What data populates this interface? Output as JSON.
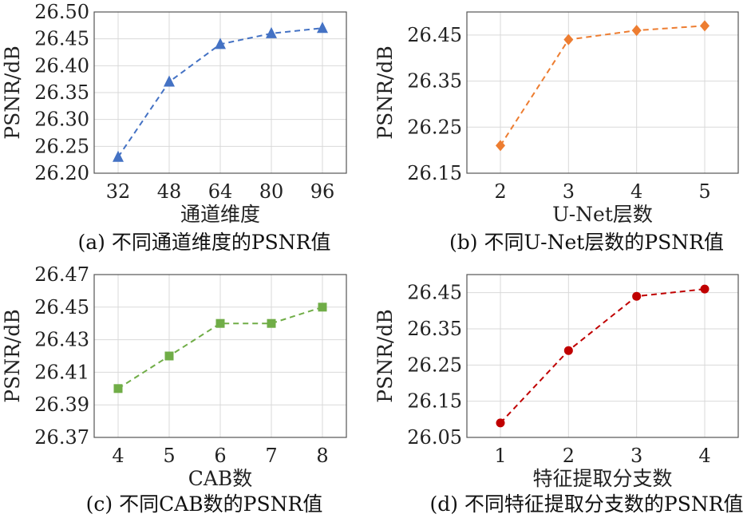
{
  "chart_data": [
    {
      "type": "line",
      "marker": "triangle",
      "color": "#4472c4",
      "x": [
        32,
        48,
        64,
        80,
        96
      ],
      "values": [
        26.23,
        26.37,
        26.44,
        26.46,
        26.47
      ],
      "xticks": [
        "32",
        "48",
        "64",
        "80",
        "96"
      ],
      "yticks": [
        "26.20",
        "26.25",
        "26.30",
        "26.35",
        "26.40",
        "26.45",
        "26.50"
      ],
      "ylim": [
        26.2,
        26.5
      ],
      "xlabel": "通道维度",
      "ylabel": "PSNR/dB",
      "caption": "(a) 不同通道维度的PSNR值",
      "grid": true
    },
    {
      "type": "line",
      "marker": "diamond",
      "color": "#ed7d31",
      "x": [
        2,
        3,
        4,
        5
      ],
      "values": [
        26.21,
        26.44,
        26.46,
        26.47
      ],
      "xticks": [
        "2",
        "3",
        "4",
        "5"
      ],
      "yticks": [
        "26.15",
        "26.25",
        "26.35",
        "26.45"
      ],
      "ylim": [
        26.15,
        26.5
      ],
      "xlabel": "U-Net层数",
      "ylabel": "PSNR/dB",
      "caption": "(b) 不同U-Net层数的PSNR值",
      "grid": true
    },
    {
      "type": "line",
      "marker": "square",
      "color": "#70ad47",
      "x": [
        4,
        5,
        6,
        7,
        8
      ],
      "values": [
        26.4,
        26.42,
        26.44,
        26.44,
        26.45
      ],
      "xticks": [
        "4",
        "5",
        "6",
        "7",
        "8"
      ],
      "yticks": [
        "26.37",
        "26.39",
        "26.41",
        "26.43",
        "26.45",
        "26.47"
      ],
      "ylim": [
        26.37,
        26.47
      ],
      "xlabel": "CAB数",
      "ylabel": "PSNR/dB",
      "caption": "(c) 不同CAB数的PSNR值",
      "grid": true
    },
    {
      "type": "line",
      "marker": "circle",
      "color": "#c00000",
      "x": [
        1,
        2,
        3,
        4
      ],
      "values": [
        26.09,
        26.29,
        26.44,
        26.46
      ],
      "xticks": [
        "1",
        "2",
        "3",
        "4"
      ],
      "yticks": [
        "26.05",
        "26.15",
        "26.25",
        "26.35",
        "26.45"
      ],
      "ylim": [
        26.05,
        26.5
      ],
      "xlabel": "特征提取分支数",
      "ylabel": "PSNR/dB",
      "caption": "(d) 不同特征提取分支数的PSNR值",
      "grid": true
    }
  ]
}
